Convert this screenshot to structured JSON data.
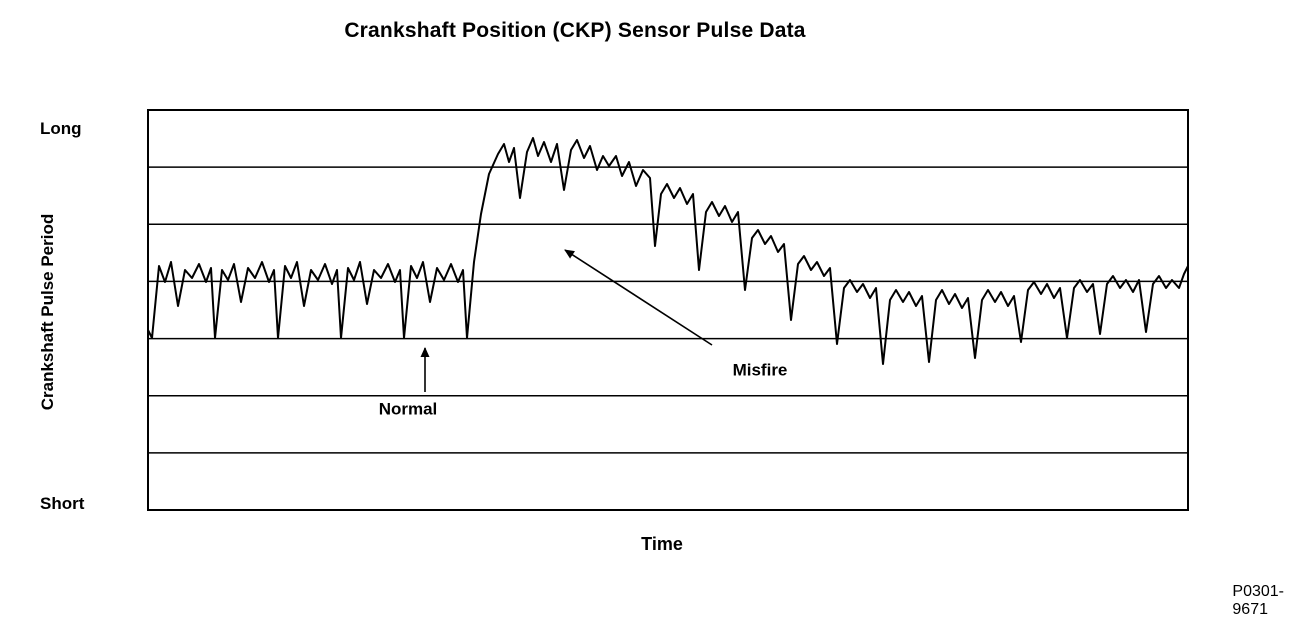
{
  "footer": {
    "part_number": "P0301-9671"
  },
  "chart_data": {
    "type": "line",
    "title": "Crankshaft Position (CKP) Sensor Pulse Data",
    "xlabel": "Time",
    "ylabel": "Crankshaft Pulse Period",
    "y_axis_top_label": "Long",
    "y_axis_bottom_label": "Short",
    "x_range": [
      0,
      1040
    ],
    "y_range": [
      0,
      1
    ],
    "grid": "horizontal",
    "grid_divisions": 7,
    "legend": "none",
    "colors": {
      "line": "#000000",
      "background": "#ffffff"
    },
    "series": [
      {
        "name": "CKP pulse period",
        "points": [
          [
            0,
            0.45
          ],
          [
            4,
            0.43
          ],
          [
            11,
            0.61
          ],
          [
            17,
            0.57
          ],
          [
            23,
            0.62
          ],
          [
            30,
            0.51
          ],
          [
            37,
            0.6
          ],
          [
            44,
            0.58
          ],
          [
            51,
            0.615
          ],
          [
            58,
            0.57
          ],
          [
            63,
            0.605
          ],
          [
            67,
            0.43
          ],
          [
            74,
            0.6
          ],
          [
            80,
            0.575
          ],
          [
            86,
            0.615
          ],
          [
            93,
            0.52
          ],
          [
            100,
            0.605
          ],
          [
            107,
            0.58
          ],
          [
            114,
            0.62
          ],
          [
            121,
            0.57
          ],
          [
            126,
            0.6
          ],
          [
            130,
            0.43
          ],
          [
            137,
            0.61
          ],
          [
            143,
            0.58
          ],
          [
            149,
            0.62
          ],
          [
            156,
            0.51
          ],
          [
            163,
            0.6
          ],
          [
            170,
            0.575
          ],
          [
            177,
            0.615
          ],
          [
            184,
            0.565
          ],
          [
            189,
            0.6
          ],
          [
            193,
            0.43
          ],
          [
            200,
            0.605
          ],
          [
            206,
            0.575
          ],
          [
            212,
            0.62
          ],
          [
            219,
            0.515
          ],
          [
            226,
            0.6
          ],
          [
            233,
            0.58
          ],
          [
            240,
            0.615
          ],
          [
            247,
            0.57
          ],
          [
            252,
            0.6
          ],
          [
            256,
            0.43
          ],
          [
            263,
            0.61
          ],
          [
            269,
            0.58
          ],
          [
            275,
            0.62
          ],
          [
            282,
            0.52
          ],
          [
            289,
            0.605
          ],
          [
            296,
            0.575
          ],
          [
            303,
            0.615
          ],
          [
            310,
            0.57
          ],
          [
            315,
            0.6
          ],
          [
            319,
            0.43
          ],
          [
            326,
            0.62
          ],
          [
            333,
            0.74
          ],
          [
            341,
            0.84
          ],
          [
            350,
            0.89
          ],
          [
            356,
            0.915
          ],
          [
            361,
            0.87
          ],
          [
            366,
            0.905
          ],
          [
            372,
            0.78
          ],
          [
            379,
            0.895
          ],
          [
            385,
            0.93
          ],
          [
            390,
            0.885
          ],
          [
            396,
            0.92
          ],
          [
            403,
            0.87
          ],
          [
            409,
            0.915
          ],
          [
            416,
            0.8
          ],
          [
            423,
            0.9
          ],
          [
            429,
            0.925
          ],
          [
            436,
            0.88
          ],
          [
            442,
            0.91
          ],
          [
            449,
            0.85
          ],
          [
            455,
            0.885
          ],
          [
            461,
            0.86
          ],
          [
            468,
            0.885
          ],
          [
            474,
            0.835
          ],
          [
            481,
            0.87
          ],
          [
            488,
            0.81
          ],
          [
            495,
            0.85
          ],
          [
            502,
            0.83
          ],
          [
            507,
            0.66
          ],
          [
            513,
            0.79
          ],
          [
            519,
            0.815
          ],
          [
            526,
            0.78
          ],
          [
            532,
            0.805
          ],
          [
            539,
            0.765
          ],
          [
            545,
            0.79
          ],
          [
            551,
            0.6
          ],
          [
            558,
            0.745
          ],
          [
            564,
            0.77
          ],
          [
            571,
            0.735
          ],
          [
            577,
            0.76
          ],
          [
            584,
            0.72
          ],
          [
            590,
            0.745
          ],
          [
            597,
            0.55
          ],
          [
            604,
            0.68
          ],
          [
            610,
            0.7
          ],
          [
            617,
            0.665
          ],
          [
            623,
            0.685
          ],
          [
            630,
            0.645
          ],
          [
            636,
            0.665
          ],
          [
            643,
            0.475
          ],
          [
            650,
            0.615
          ],
          [
            656,
            0.635
          ],
          [
            663,
            0.6
          ],
          [
            669,
            0.62
          ],
          [
            676,
            0.585
          ],
          [
            682,
            0.605
          ],
          [
            689,
            0.415
          ],
          [
            696,
            0.555
          ],
          [
            702,
            0.575
          ],
          [
            709,
            0.545
          ],
          [
            715,
            0.565
          ],
          [
            722,
            0.53
          ],
          [
            728,
            0.555
          ],
          [
            735,
            0.365
          ],
          [
            742,
            0.525
          ],
          [
            748,
            0.55
          ],
          [
            755,
            0.52
          ],
          [
            761,
            0.545
          ],
          [
            768,
            0.51
          ],
          [
            774,
            0.535
          ],
          [
            781,
            0.37
          ],
          [
            788,
            0.525
          ],
          [
            794,
            0.55
          ],
          [
            801,
            0.515
          ],
          [
            807,
            0.54
          ],
          [
            814,
            0.505
          ],
          [
            820,
            0.53
          ],
          [
            827,
            0.38
          ],
          [
            834,
            0.525
          ],
          [
            840,
            0.55
          ],
          [
            847,
            0.52
          ],
          [
            853,
            0.545
          ],
          [
            860,
            0.51
          ],
          [
            866,
            0.535
          ],
          [
            873,
            0.42
          ],
          [
            880,
            0.55
          ],
          [
            886,
            0.57
          ],
          [
            893,
            0.54
          ],
          [
            899,
            0.565
          ],
          [
            906,
            0.53
          ],
          [
            912,
            0.555
          ],
          [
            919,
            0.43
          ],
          [
            926,
            0.555
          ],
          [
            932,
            0.575
          ],
          [
            939,
            0.545
          ],
          [
            945,
            0.565
          ],
          [
            952,
            0.44
          ],
          [
            959,
            0.565
          ],
          [
            965,
            0.585
          ],
          [
            972,
            0.555
          ],
          [
            978,
            0.575
          ],
          [
            985,
            0.545
          ],
          [
            991,
            0.575
          ],
          [
            998,
            0.445
          ],
          [
            1005,
            0.565
          ],
          [
            1011,
            0.585
          ],
          [
            1018,
            0.555
          ],
          [
            1024,
            0.575
          ],
          [
            1031,
            0.555
          ],
          [
            1036,
            0.59
          ],
          [
            1040,
            0.61
          ]
        ]
      }
    ],
    "annotations": [
      {
        "id": "normal",
        "label": "Normal",
        "label_pos": [
          260,
          0.25
        ],
        "arrow": {
          "from": [
            277,
            0.295
          ],
          "to": [
            277,
            0.405
          ]
        }
      },
      {
        "id": "misfire",
        "label": "Misfire",
        "label_pos": [
          612,
          0.3475
        ],
        "arrow": {
          "from": [
            564,
            0.4125
          ],
          "to": [
            417,
            0.65
          ]
        }
      }
    ]
  }
}
